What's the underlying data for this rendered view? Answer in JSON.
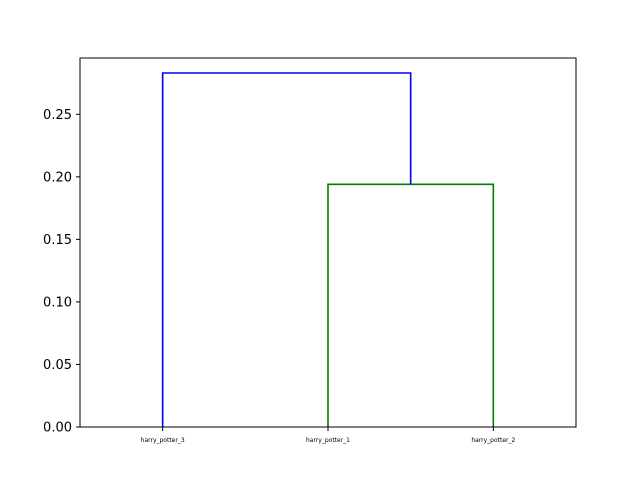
{
  "chart_data": {
    "type": "dendrogram",
    "title": "",
    "xlabel": "",
    "ylabel": "",
    "ylim": [
      0,
      0.295
    ],
    "yticks": [
      {
        "value": 0.0,
        "label": "0.00"
      },
      {
        "value": 0.05,
        "label": "0.05"
      },
      {
        "value": 0.1,
        "label": "0.10"
      },
      {
        "value": 0.15,
        "label": "0.15"
      },
      {
        "value": 0.2,
        "label": "0.20"
      },
      {
        "value": 0.25,
        "label": "0.25"
      }
    ],
    "leaves": [
      "harry_potter_3",
      "harry_potter_1",
      "harry_potter_2"
    ],
    "links": [
      {
        "left": "harry_potter_1",
        "right": "harry_potter_2",
        "height": 0.194,
        "color": "#008000"
      },
      {
        "left": "harry_potter_3",
        "right": "cluster(harry_potter_1, harry_potter_2)",
        "height": 0.283,
        "color": "#0000ff"
      }
    ],
    "grid": false,
    "legend": "none"
  }
}
